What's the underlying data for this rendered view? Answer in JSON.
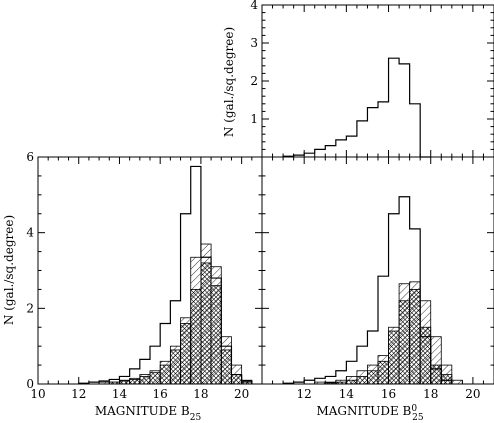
{
  "chart_data": [
    {
      "id": "top-right",
      "type": "histogram",
      "title": "",
      "xlabel": "",
      "ylabel": "N (gal./sq.degree)",
      "xlim": [
        10,
        21
      ],
      "ylim": [
        0,
        4
      ],
      "bin_width": 0.5,
      "y_tick_labels": [
        "1",
        "2",
        "3",
        "4"
      ],
      "y_ticks": [
        1,
        2,
        3,
        4
      ],
      "x_ticks": [
        12,
        14,
        16,
        18,
        20
      ],
      "grid": false,
      "series": [
        {
          "style": "outline",
          "bins": [
            [
              11.0,
              11.5,
              0.02
            ],
            [
              11.5,
              12.0,
              0.05
            ],
            [
              12.0,
              12.5,
              0.1
            ],
            [
              12.5,
              13.0,
              0.2
            ],
            [
              13.0,
              13.5,
              0.3
            ],
            [
              13.5,
              14.0,
              0.45
            ],
            [
              14.0,
              14.5,
              0.55
            ],
            [
              14.5,
              15.0,
              0.95
            ],
            [
              15.0,
              15.5,
              1.3
            ],
            [
              15.5,
              16.0,
              1.45
            ],
            [
              16.0,
              16.5,
              2.6
            ],
            [
              16.5,
              17.0,
              2.45
            ],
            [
              17.0,
              17.5,
              1.4
            ],
            [
              17.5,
              18.0,
              0
            ]
          ]
        }
      ]
    },
    {
      "id": "bottom-left",
      "type": "histogram",
      "title": "",
      "xlabel": "MAGNITUDE B",
      "xlabel_sub": "25",
      "ylabel": "N (gal./sq.degree)",
      "xlim": [
        10,
        21
      ],
      "ylim": [
        0,
        6
      ],
      "bin_width": 0.5,
      "x_ticks": [
        10,
        12,
        14,
        16,
        18,
        20
      ],
      "x_tick_labels": [
        "10",
        "12",
        "14",
        "16",
        "18",
        "20"
      ],
      "y_ticks": [
        0,
        2,
        4,
        6
      ],
      "y_tick_labels": [
        "0",
        "2",
        "4",
        "6"
      ],
      "grid": false,
      "series": [
        {
          "style": "outline",
          "bins": [
            [
              12.0,
              12.5,
              0.02
            ],
            [
              12.5,
              13.0,
              0.05
            ],
            [
              13.0,
              13.5,
              0.08
            ],
            [
              13.5,
              14.0,
              0.12
            ],
            [
              14.0,
              14.5,
              0.2
            ],
            [
              14.5,
              15.0,
              0.4
            ],
            [
              15.0,
              15.5,
              0.65
            ],
            [
              15.5,
              16.0,
              1.0
            ],
            [
              16.0,
              16.5,
              1.6
            ],
            [
              16.5,
              17.0,
              2.2
            ],
            [
              17.0,
              17.5,
              4.5
            ],
            [
              17.5,
              18.0,
              5.75
            ],
            [
              18.0,
              18.5,
              3.35
            ],
            [
              18.5,
              19.0,
              2.8
            ],
            [
              19.0,
              19.5,
              1.0
            ],
            [
              19.5,
              20.0,
              0.25
            ],
            [
              20.0,
              20.5,
              0.08
            ]
          ]
        },
        {
          "style": "single-hatch",
          "bins": [
            [
              13.0,
              13.5,
              0.05
            ],
            [
              13.5,
              14.0,
              0.05
            ],
            [
              14.0,
              14.5,
              0.1
            ],
            [
              14.5,
              15.0,
              0.15
            ],
            [
              15.0,
              15.5,
              0.25
            ],
            [
              15.5,
              16.0,
              0.35
            ],
            [
              16.0,
              16.5,
              0.6
            ],
            [
              16.5,
              17.0,
              1.0
            ],
            [
              17.0,
              17.5,
              1.75
            ],
            [
              17.5,
              18.0,
              3.35
            ],
            [
              18.0,
              18.5,
              3.7
            ],
            [
              18.5,
              19.0,
              3.1
            ],
            [
              19.0,
              19.5,
              1.25
            ],
            [
              19.5,
              20.0,
              0.5
            ],
            [
              20.0,
              20.5,
              0.1
            ]
          ]
        },
        {
          "style": "cross-hatch",
          "bins": [
            [
              13.5,
              14.0,
              0.05
            ],
            [
              14.0,
              14.5,
              0.08
            ],
            [
              14.5,
              15.0,
              0.12
            ],
            [
              15.0,
              15.5,
              0.2
            ],
            [
              15.5,
              16.0,
              0.3
            ],
            [
              16.0,
              16.5,
              0.5
            ],
            [
              16.5,
              17.0,
              0.9
            ],
            [
              17.0,
              17.5,
              1.6
            ],
            [
              17.5,
              18.0,
              2.5
            ],
            [
              18.0,
              18.5,
              3.2
            ],
            [
              18.5,
              19.0,
              2.6
            ],
            [
              19.0,
              19.5,
              0.9
            ],
            [
              19.5,
              20.0,
              0.25
            ],
            [
              20.0,
              20.5,
              0.05
            ]
          ]
        }
      ]
    },
    {
      "id": "bottom-right",
      "type": "histogram",
      "title": "",
      "xlabel": "MAGNITUDE B",
      "xlabel_sub": "25",
      "xlabel_sup": "0",
      "ylabel": "",
      "xlim": [
        10,
        21
      ],
      "ylim": [
        0,
        6
      ],
      "bin_width": 0.5,
      "x_ticks": [
        12,
        14,
        16,
        18,
        20
      ],
      "x_tick_labels": [
        "12",
        "14",
        "16",
        "18",
        "20"
      ],
      "y_ticks": [
        0,
        2,
        4,
        6
      ],
      "grid": false,
      "series": [
        {
          "style": "outline",
          "bins": [
            [
              11.0,
              11.5,
              0.02
            ],
            [
              11.5,
              12.0,
              0.05
            ],
            [
              12.0,
              12.5,
              0.1
            ],
            [
              12.5,
              13.0,
              0.15
            ],
            [
              13.0,
              13.5,
              0.2
            ],
            [
              13.5,
              14.0,
              0.35
            ],
            [
              14.0,
              14.5,
              0.6
            ],
            [
              14.5,
              15.0,
              1.0
            ],
            [
              15.0,
              15.5,
              1.4
            ],
            [
              15.5,
              16.0,
              2.85
            ],
            [
              16.0,
              16.5,
              4.5
            ],
            [
              16.5,
              17.0,
              4.95
            ],
            [
              17.0,
              17.5,
              4.1
            ],
            [
              17.5,
              18.0,
              1.25
            ],
            [
              18.0,
              18.5,
              0.4
            ],
            [
              18.5,
              19.0,
              0.1
            ]
          ]
        },
        {
          "style": "single-hatch",
          "bins": [
            [
              12.5,
              13.0,
              0.05
            ],
            [
              13.0,
              13.5,
              0.05
            ],
            [
              13.5,
              14.0,
              0.1
            ],
            [
              14.0,
              14.5,
              0.2
            ],
            [
              14.5,
              15.0,
              0.35
            ],
            [
              15.0,
              15.5,
              0.5
            ],
            [
              15.5,
              16.0,
              0.75
            ],
            [
              16.0,
              16.5,
              1.5
            ],
            [
              16.5,
              17.0,
              2.65
            ],
            [
              17.0,
              17.5,
              2.7
            ],
            [
              17.5,
              18.0,
              2.2
            ],
            [
              18.0,
              18.5,
              1.25
            ],
            [
              18.5,
              19.0,
              0.5
            ],
            [
              19.0,
              19.5,
              0.1
            ]
          ]
        },
        {
          "style": "cross-hatch",
          "bins": [
            [
              13.0,
              13.5,
              0.03
            ],
            [
              13.5,
              14.0,
              0.05
            ],
            [
              14.0,
              14.5,
              0.1
            ],
            [
              14.5,
              15.0,
              0.2
            ],
            [
              15.0,
              15.5,
              0.35
            ],
            [
              15.5,
              16.0,
              0.6
            ],
            [
              16.0,
              16.5,
              1.4
            ],
            [
              16.5,
              17.0,
              2.2
            ],
            [
              17.0,
              17.5,
              2.5
            ],
            [
              17.5,
              18.0,
              1.5
            ],
            [
              18.0,
              18.5,
              0.5
            ],
            [
              18.5,
              19.0,
              0.25
            ]
          ]
        }
      ]
    }
  ]
}
